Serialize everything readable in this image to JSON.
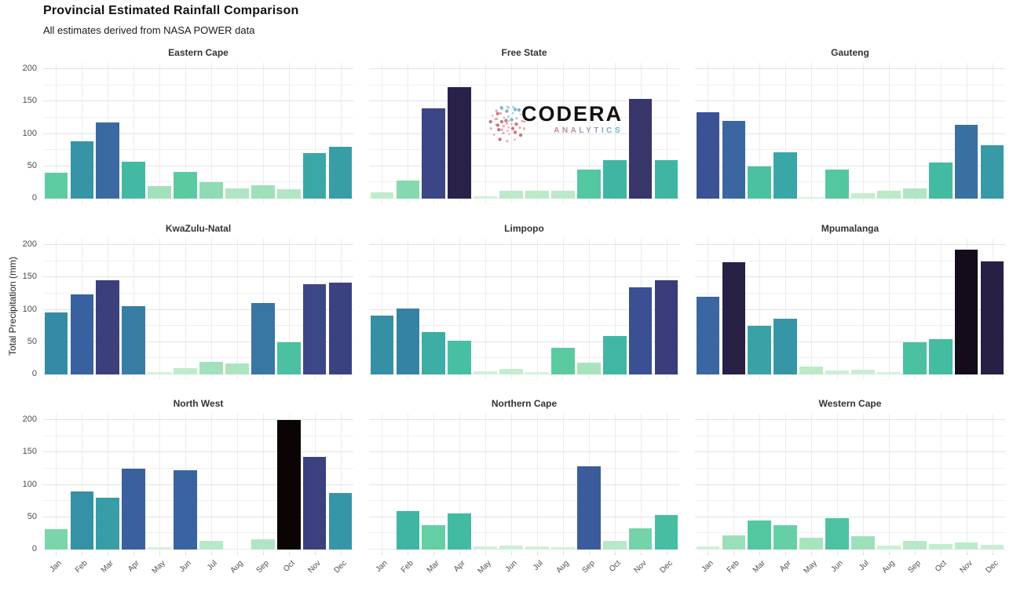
{
  "header": {
    "title": "Provincial Estimated Rainfall Comparison",
    "subtitle": "All estimates derived from NASA POWER data"
  },
  "watermark": {
    "brand": "CODERA",
    "sub": "ANALYTICS",
    "brand_color": "#121212",
    "sub_color_start": "#CE8490",
    "sub_color_end": "#6FB0D4",
    "globe_pink_shades": [
      "#D98B94",
      "#E3ADB3",
      "#C97983"
    ],
    "globe_blue_shades": [
      "#8FC3D8",
      "#A9D4E4",
      "#79B5CE"
    ]
  },
  "chart_data": {
    "type": "bar",
    "title": "Provincial Estimated Rainfall Comparison",
    "subtitle": "All estimates derived from NASA POWER data",
    "xlabel": "",
    "ylabel": "Total Precipitation (mm)",
    "ylim": [
      0,
      210
    ],
    "yticks": [
      0,
      50,
      100,
      150,
      200
    ],
    "yticks_minor": [
      25,
      75,
      125,
      175
    ],
    "grid": "on",
    "legend": "none",
    "categories": [
      "Jan",
      "Feb",
      "Mar",
      "Apr",
      "May",
      "Jun",
      "Jul",
      "Aug",
      "Sep",
      "Oct",
      "Nov",
      "Dec"
    ],
    "facets": [
      {
        "title": "Eastern Cape",
        "values": [
          40,
          88,
          118,
          57,
          20,
          41,
          25,
          16,
          21,
          15,
          70,
          80
        ]
      },
      {
        "title": "Free State",
        "values": [
          10,
          28,
          140,
          172,
          4,
          12,
          12,
          12,
          45,
          60,
          154,
          60
        ]
      },
      {
        "title": "Gauteng",
        "values": [
          133,
          120,
          50,
          72,
          3,
          45,
          8,
          12,
          16,
          56,
          114,
          82
        ]
      },
      {
        "title": "KwaZulu-Natal",
        "values": [
          96,
          124,
          145,
          106,
          4,
          10,
          20,
          17,
          110,
          50,
          139,
          142
        ]
      },
      {
        "title": "Limpopo",
        "values": [
          91,
          102,
          66,
          52,
          5,
          9,
          4,
          41,
          18,
          59,
          134,
          146
        ]
      },
      {
        "title": "Mpumalanga",
        "values": [
          120,
          173,
          75,
          86,
          12,
          6,
          7,
          4,
          50,
          55,
          193,
          174
        ]
      },
      {
        "title": "North West",
        "values": [
          31,
          90,
          80,
          125,
          4,
          122,
          13,
          1,
          16,
          200,
          143,
          87
        ]
      },
      {
        "title": "Northern Cape",
        "values": [
          1,
          60,
          38,
          56,
          5,
          6,
          5,
          4,
          128,
          13,
          33,
          53
        ]
      },
      {
        "title": "Western Cape",
        "values": [
          5,
          22,
          45,
          37,
          18,
          49,
          21,
          6,
          13,
          9,
          11,
          7
        ]
      }
    ],
    "color_scale": {
      "name": "mako-reversed-by-value",
      "domain": [
        0,
        200
      ],
      "stops": [
        [
          0,
          "#DFF5E4"
        ],
        [
          8,
          "#C7EDD1"
        ],
        [
          18,
          "#A9E3BE"
        ],
        [
          30,
          "#7ED6AC"
        ],
        [
          42,
          "#57CAA0"
        ],
        [
          55,
          "#44BCA2"
        ],
        [
          70,
          "#3AA8A7"
        ],
        [
          85,
          "#3697A6"
        ],
        [
          100,
          "#3486A4"
        ],
        [
          112,
          "#3973A3"
        ],
        [
          122,
          "#3A64A0"
        ],
        [
          130,
          "#3B589A"
        ],
        [
          140,
          "#3C4585"
        ],
        [
          150,
          "#393871"
        ],
        [
          160,
          "#343060"
        ],
        [
          172,
          "#2A2148"
        ],
        [
          183,
          "#1D1733"
        ],
        [
          192,
          "#140E1E"
        ],
        [
          200,
          "#0B0405"
        ]
      ]
    }
  }
}
